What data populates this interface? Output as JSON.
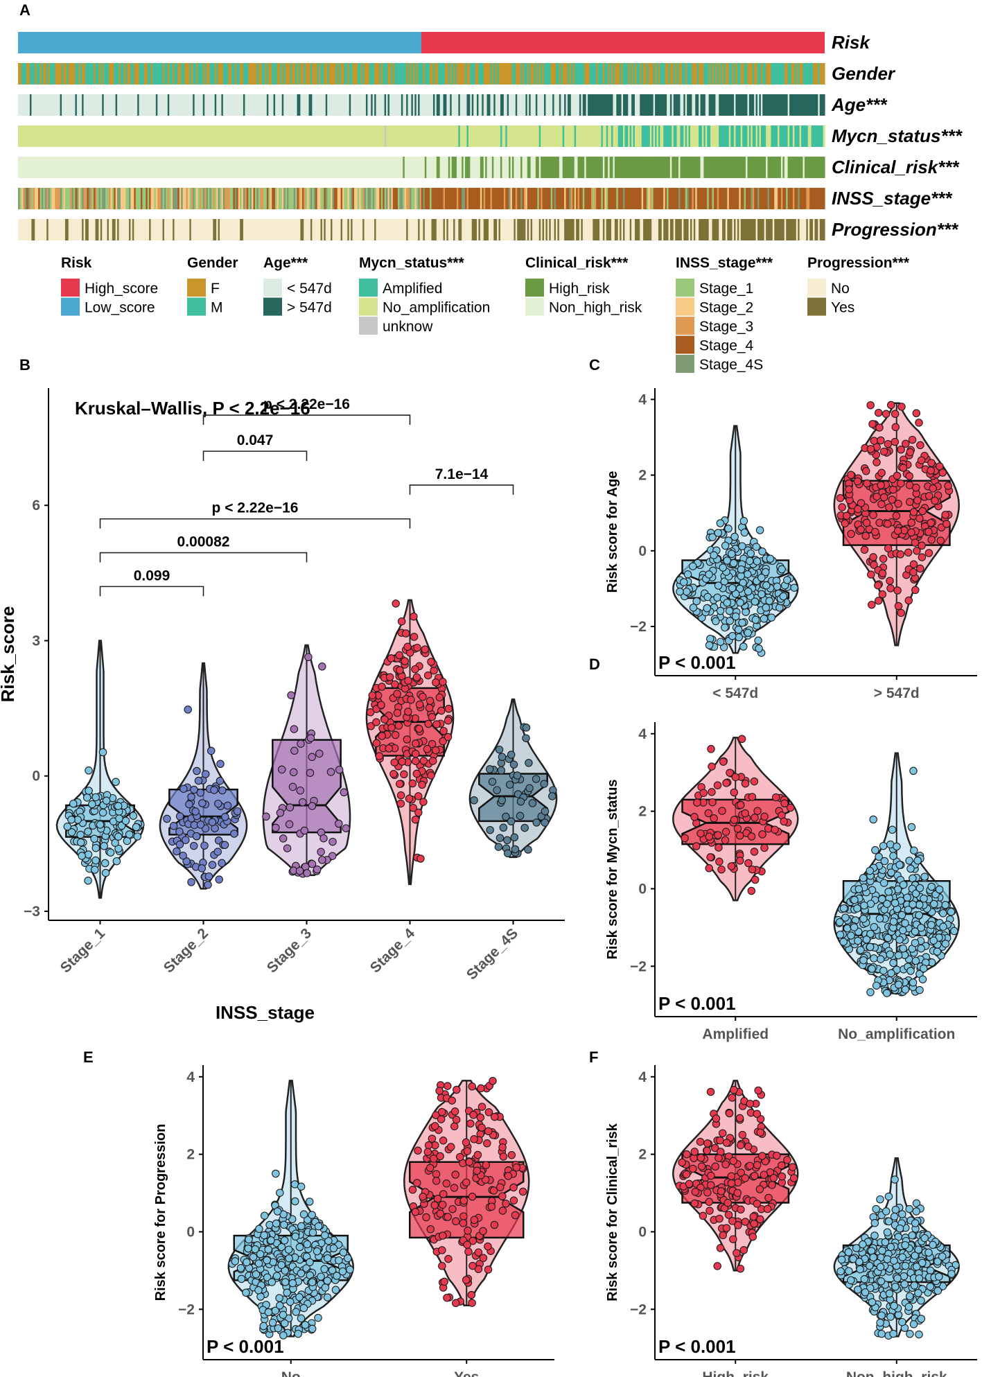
{
  "panel_a": {
    "letter": "A",
    "tracks": [
      {
        "label": "Risk"
      },
      {
        "label": "Gender"
      },
      {
        "label": "Age***"
      },
      {
        "label": "Mycn_status***"
      },
      {
        "label": "Clinical_risk***"
      },
      {
        "label": "INSS_stage***"
      },
      {
        "label": "Progression***"
      }
    ],
    "legend": [
      {
        "title": "Risk",
        "items": [
          {
            "label": "High_score",
            "color": "#e8394f"
          },
          {
            "label": "Low_score",
            "color": "#4ba8d0"
          }
        ]
      },
      {
        "title": "Gender",
        "items": [
          {
            "label": "F",
            "color": "#c9962b"
          },
          {
            "label": "M",
            "color": "#3fbf9e"
          }
        ]
      },
      {
        "title": "Age***",
        "items": [
          {
            "label": "< 547d",
            "color": "#dcece2"
          },
          {
            "label": "> 547d",
            "color": "#27665c"
          }
        ]
      },
      {
        "title": "Mycn_status***",
        "items": [
          {
            "label": "Amplified",
            "color": "#3fbf9e"
          },
          {
            "label": "No_amplification",
            "color": "#d5e38c"
          },
          {
            "label": "unknow",
            "color": "#c7c7c7"
          }
        ]
      },
      {
        "title": "Clinical_risk***",
        "items": [
          {
            "label": "High_risk",
            "color": "#6b9a45"
          },
          {
            "label": "Non_high_risk",
            "color": "#e4f0d4"
          }
        ]
      },
      {
        "title": "INSS_stage***",
        "items": [
          {
            "label": "Stage_1",
            "color": "#9bc97c"
          },
          {
            "label": "Stage_2",
            "color": "#f7cb85"
          },
          {
            "label": "Stage_3",
            "color": "#e09a54"
          },
          {
            "label": "Stage_4",
            "color": "#a95c1f"
          },
          {
            "label": "Stage_4S",
            "color": "#7f9c76"
          }
        ]
      },
      {
        "title": "Progression***",
        "items": [
          {
            "label": "No",
            "color": "#f6ecd2"
          },
          {
            "label": "Yes",
            "color": "#7d7237"
          }
        ]
      }
    ]
  },
  "chart_data": [
    {
      "panel": "B",
      "type": "violin-box-jitter",
      "title": "Kruskal–Wallis, P < 2.2e−16",
      "xlabel": "INSS_stage",
      "ylabel": "Risk_score",
      "ylim": [
        -3.2,
        8.6
      ],
      "yticks": [
        {
          "v": -3,
          "label": "−3"
        },
        {
          "v": 0,
          "label": "0"
        },
        {
          "v": 3,
          "label": "3"
        },
        {
          "v": 6,
          "label": "6"
        }
      ],
      "rotate_xticks": true,
      "groups": [
        {
          "name": "Stage_1",
          "color": "#7fc4e0",
          "q1": -1.35,
          "median": -1.0,
          "q3": -0.65,
          "min": -2.7,
          "max": 3.0,
          "density_peak": -1.1,
          "n": 110
        },
        {
          "name": "Stage_2",
          "color": "#6f80c8",
          "q1": -1.3,
          "median": -0.9,
          "q3": -0.3,
          "min": -2.5,
          "max": 2.5,
          "density_peak": -1.1,
          "n": 85
        },
        {
          "name": "Stage_3",
          "color": "#a672b4",
          "q1": -1.25,
          "median": -0.65,
          "q3": 0.8,
          "min": -2.2,
          "max": 2.9,
          "density_peak": -0.9,
          "n": 55
        },
        {
          "name": "Stage_4",
          "color": "#e8394f",
          "q1": 0.45,
          "median": 1.2,
          "q3": 1.95,
          "min": -2.4,
          "max": 3.9,
          "density_peak": 1.3,
          "n": 180
        },
        {
          "name": "Stage_4S",
          "color": "#587f94",
          "q1": -1.0,
          "median": -0.45,
          "q3": 0.05,
          "min": -1.8,
          "max": 1.7,
          "density_peak": -0.5,
          "n": 55
        }
      ],
      "comparisons": [
        {
          "from": 0,
          "to": 1,
          "y": 4.2,
          "label": "0.099"
        },
        {
          "from": 0,
          "to": 2,
          "y": 4.95,
          "label": "0.00082"
        },
        {
          "from": 0,
          "to": 3,
          "y": 5.7,
          "label": "p < 2.22e−16"
        },
        {
          "from": 3,
          "to": 4,
          "y": 6.45,
          "label": "7.1e−14"
        },
        {
          "from": 1,
          "to": 2,
          "y": 7.2,
          "label": "0.047"
        },
        {
          "from": 1,
          "to": 3,
          "y": 8.0,
          "label": "p < 2.22e−16"
        }
      ]
    },
    {
      "panel": "C",
      "type": "violin-box-jitter",
      "ylabel": "Risk score for Age",
      "pvalue": "P < 0.001",
      "ylim": [
        -3.3,
        4.3
      ],
      "yticks": [
        {
          "v": -2,
          "label": "−2"
        },
        {
          "v": 0,
          "label": "0"
        },
        {
          "v": 2,
          "label": "2"
        },
        {
          "v": 4,
          "label": "4"
        }
      ],
      "groups": [
        {
          "name": "< 547d",
          "color": "#7fc4e0",
          "q1": -1.25,
          "median": -0.85,
          "q3": -0.25,
          "min": -2.7,
          "max": 3.3,
          "density_peak": -1.0,
          "n": 260
        },
        {
          "name": "> 547d",
          "color": "#e8394f",
          "q1": 0.15,
          "median": 1.05,
          "q3": 1.85,
          "min": -2.5,
          "max": 3.9,
          "density_peak": 1.2,
          "n": 230
        }
      ]
    },
    {
      "panel": "D",
      "type": "violin-box-jitter",
      "ylabel": "Risk score for Mycn_status",
      "pvalue": "P < 0.001",
      "ylim": [
        -3.3,
        4.3
      ],
      "yticks": [
        {
          "v": -2,
          "label": "−2"
        },
        {
          "v": 0,
          "label": "0"
        },
        {
          "v": 2,
          "label": "2"
        },
        {
          "v": 4,
          "label": "4"
        }
      ],
      "groups": [
        {
          "name": "Amplified",
          "color": "#e8394f",
          "q1": 1.15,
          "median": 1.7,
          "q3": 2.3,
          "min": -0.3,
          "max": 3.9,
          "density_peak": 1.8,
          "n": 95
        },
        {
          "name": "No_amplification",
          "color": "#7fc4e0",
          "q1": -1.2,
          "median": -0.65,
          "q3": 0.2,
          "min": -2.7,
          "max": 3.5,
          "density_peak": -0.9,
          "n": 380
        }
      ]
    },
    {
      "panel": "E",
      "type": "violin-box-jitter",
      "ylabel": "Risk score for Progression",
      "pvalue": "P < 0.001",
      "ylim": [
        -3.3,
        4.3
      ],
      "yticks": [
        {
          "v": -2,
          "label": "−2"
        },
        {
          "v": 0,
          "label": "0"
        },
        {
          "v": 2,
          "label": "2"
        },
        {
          "v": 4,
          "label": "4"
        }
      ],
      "groups": [
        {
          "name": "No",
          "color": "#7fc4e0",
          "q1": -1.25,
          "median": -0.75,
          "q3": -0.1,
          "min": -2.7,
          "max": 3.9,
          "density_peak": -0.9,
          "n": 300
        },
        {
          "name": "Yes",
          "color": "#e8394f",
          "q1": -0.15,
          "median": 0.9,
          "q3": 1.8,
          "min": -1.9,
          "max": 3.9,
          "density_peak": 1.3,
          "n": 200
        }
      ]
    },
    {
      "panel": "F",
      "type": "violin-box-jitter",
      "ylabel": "Risk score for Clinical_risk",
      "pvalue": "P < 0.001",
      "ylim": [
        -3.3,
        4.3
      ],
      "yticks": [
        {
          "v": -2,
          "label": "−2"
        },
        {
          "v": 0,
          "label": "0"
        },
        {
          "v": 2,
          "label": "2"
        },
        {
          "v": 4,
          "label": "4"
        }
      ],
      "groups": [
        {
          "name": "High_risk",
          "color": "#e8394f",
          "q1": 0.75,
          "median": 1.4,
          "q3": 2.0,
          "min": -1.0,
          "max": 3.9,
          "density_peak": 1.5,
          "n": 190
        },
        {
          "name": "Non_high_risk",
          "color": "#7fc4e0",
          "q1": -1.3,
          "median": -0.9,
          "q3": -0.35,
          "min": -2.7,
          "max": 1.9,
          "density_peak": -0.9,
          "n": 310
        }
      ]
    }
  ]
}
